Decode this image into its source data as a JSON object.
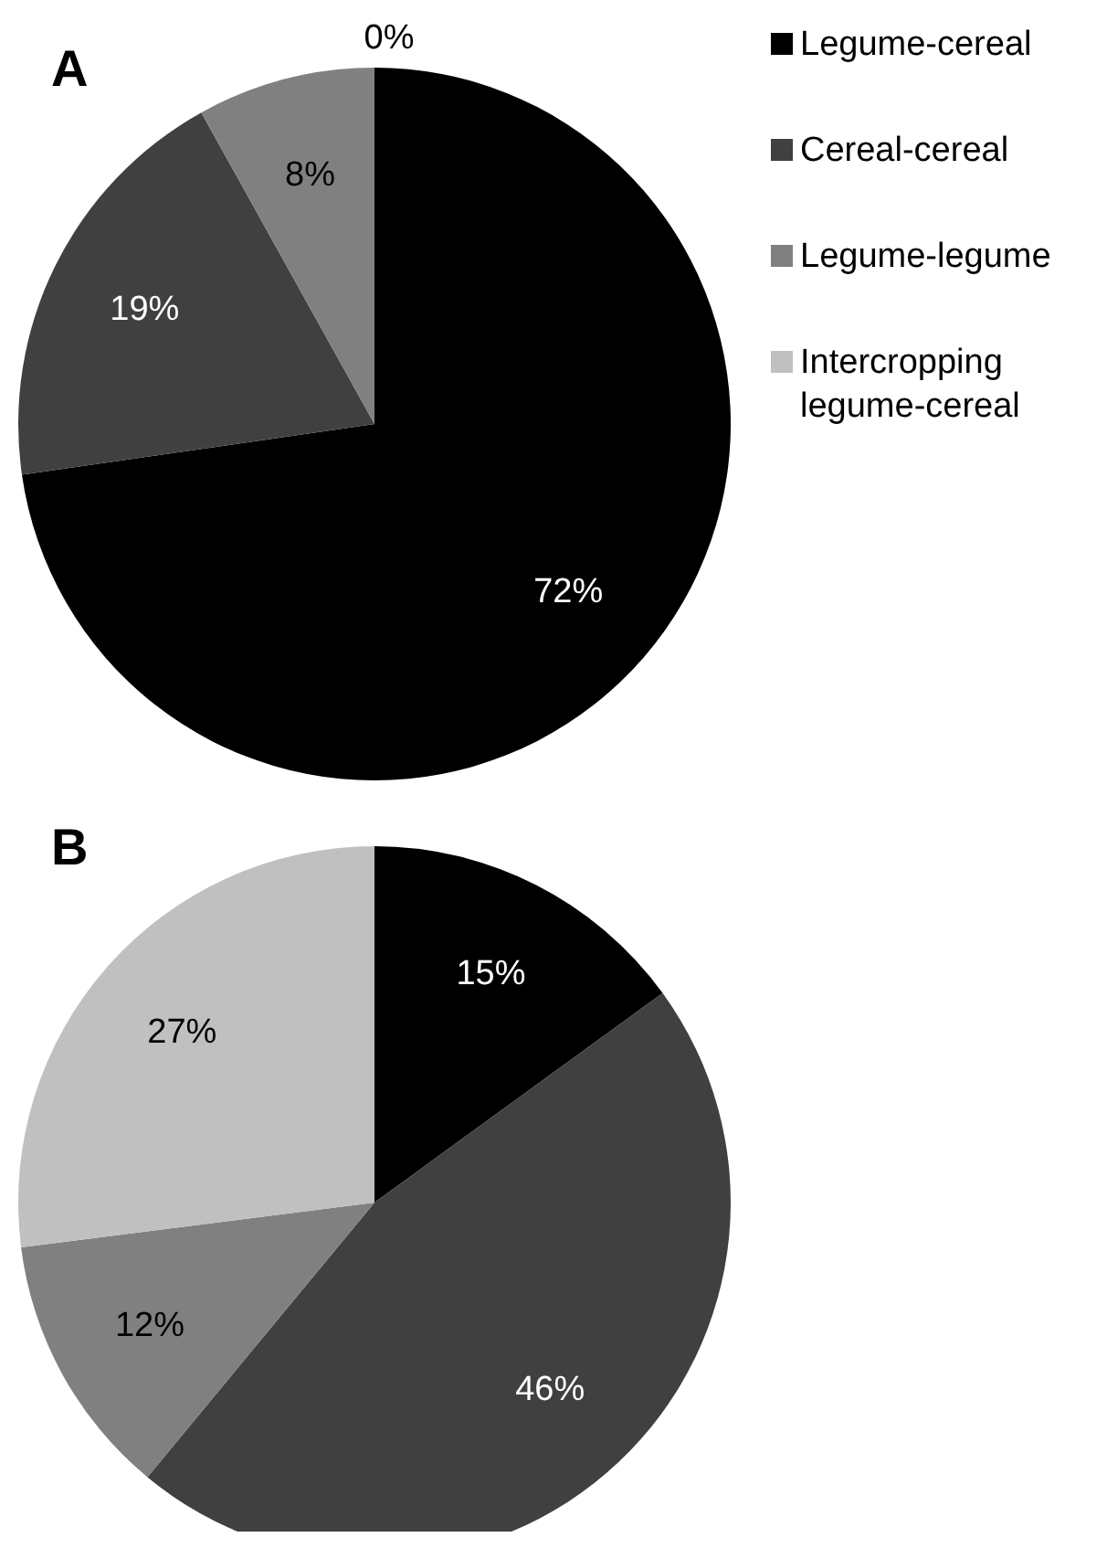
{
  "chart_data": [
    {
      "type": "pie",
      "title": "A",
      "categories": [
        "Legume-cereal",
        "Cereal-cereal",
        "Legume-legume",
        "Intercropping legume-cereal"
      ],
      "values": [
        72,
        19,
        8,
        0
      ],
      "colors": [
        "#000000",
        "#404040",
        "#808080",
        "#c0c0c0"
      ],
      "value_labels": [
        "72%",
        "19%",
        "8%",
        "0%"
      ],
      "legend": "right"
    },
    {
      "type": "pie",
      "title": "B",
      "values": [
        15,
        46,
        12,
        27
      ],
      "colors": [
        "#000000",
        "#404040",
        "#808080",
        "#c0c0c0"
      ],
      "value_labels": [
        "15%",
        "46%",
        "12%",
        "27%"
      ]
    }
  ]
}
